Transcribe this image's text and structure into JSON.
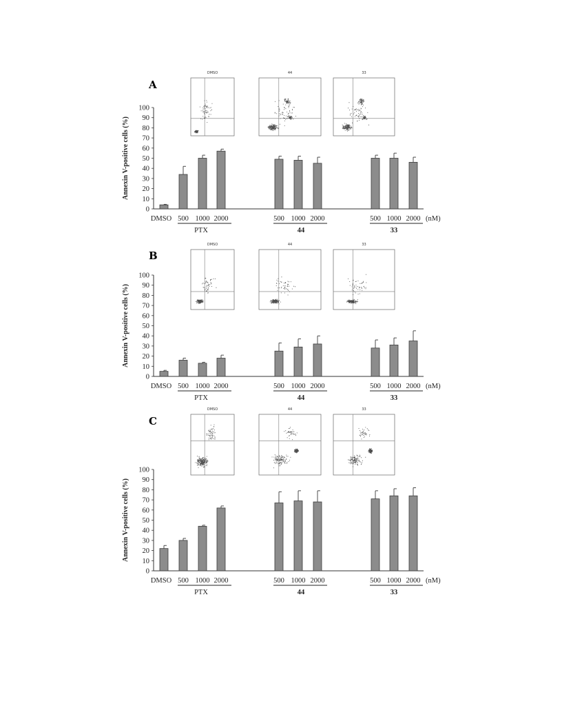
{
  "chart_data": [
    {
      "panel": "A",
      "type": "bar",
      "ylabel": "Annexin V-positive cells (%)",
      "ylim": [
        0,
        100
      ],
      "yticks": [
        0,
        10,
        20,
        30,
        40,
        50,
        60,
        70,
        80,
        90,
        100
      ],
      "categories": [
        "DMSO",
        "500",
        "1000",
        "2000",
        "500",
        "1000",
        "2000",
        "500",
        "1000",
        "2000"
      ],
      "unit_label": "(nM)",
      "groups": [
        {
          "label": "PTX",
          "bold": false
        },
        {
          "label": "44",
          "bold": true
        },
        {
          "label": "33",
          "bold": true
        }
      ],
      "values": [
        4,
        34,
        50,
        57,
        49,
        48,
        45,
        50,
        50,
        46
      ],
      "errors": [
        0.5,
        8,
        3,
        2,
        3,
        4,
        6,
        3,
        5,
        5
      ],
      "insets": [
        "DMSO",
        "44",
        "33"
      ]
    },
    {
      "panel": "B",
      "type": "bar",
      "ylabel": "Annexin V-positive cells (%)",
      "ylim": [
        0,
        100
      ],
      "yticks": [
        0,
        10,
        20,
        30,
        40,
        50,
        60,
        70,
        80,
        90,
        100
      ],
      "categories": [
        "DMSO",
        "500",
        "1000",
        "2000",
        "500",
        "1000",
        "2000",
        "500",
        "1000",
        "2000"
      ],
      "unit_label": "(nM)",
      "groups": [
        {
          "label": "PTX",
          "bold": false
        },
        {
          "label": "44",
          "bold": true
        },
        {
          "label": "33",
          "bold": true
        }
      ],
      "values": [
        5,
        16,
        13,
        18,
        25,
        29,
        32,
        28,
        31,
        35
      ],
      "errors": [
        1,
        2,
        1,
        3,
        8,
        8,
        8,
        8,
        7,
        10
      ],
      "insets": [
        "DMSO",
        "44",
        "33"
      ]
    },
    {
      "panel": "C",
      "type": "bar",
      "ylabel": "Annexin V-positive cells (%)",
      "ylim": [
        0,
        100
      ],
      "yticks": [
        0,
        10,
        20,
        30,
        40,
        50,
        60,
        70,
        80,
        90,
        100
      ],
      "categories": [
        "DMSO",
        "500",
        "1000",
        "2000",
        "500",
        "1000",
        "2000",
        "500",
        "1000",
        "2000"
      ],
      "unit_label": "(nM)",
      "groups": [
        {
          "label": "PTX",
          "bold": false
        },
        {
          "label": "44",
          "bold": true
        },
        {
          "label": "33",
          "bold": true
        }
      ],
      "values": [
        22,
        30,
        44,
        62,
        67,
        69,
        68,
        71,
        74,
        74
      ],
      "errors": [
        3,
        2,
        1,
        2,
        11,
        10,
        11,
        8,
        7,
        8
      ],
      "insets": [
        "DMSO",
        "44",
        "33"
      ]
    }
  ]
}
